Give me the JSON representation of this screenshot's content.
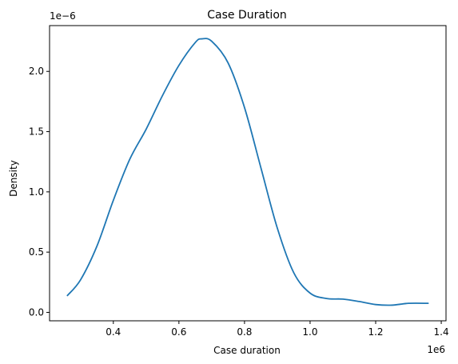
{
  "chart_data": {
    "type": "line",
    "title": "Case Duration",
    "xlabel": "Case duration",
    "ylabel": "Density",
    "x_offset_label": "1e6",
    "y_offset_label": "1e−6",
    "x_scale": 1000000,
    "y_scale": 1e-06,
    "xlim": [
      0.2055,
      1.4145
    ],
    "ylim": [
      -0.07,
      2.38
    ],
    "x_ticks": [
      {
        "value": 0.4,
        "label": "0.4"
      },
      {
        "value": 0.6,
        "label": "0.6"
      },
      {
        "value": 0.8,
        "label": "0.8"
      },
      {
        "value": 1.0,
        "label": "1.0"
      },
      {
        "value": 1.2,
        "label": "1.2"
      },
      {
        "value": 1.4,
        "label": "1.4"
      }
    ],
    "y_ticks": [
      {
        "value": 0.0,
        "label": "0.0"
      },
      {
        "value": 0.5,
        "label": "0.5"
      },
      {
        "value": 1.0,
        "label": "1.0"
      },
      {
        "value": 1.5,
        "label": "1.5"
      },
      {
        "value": 2.0,
        "label": "2.0"
      }
    ],
    "grid": false,
    "legend": "none",
    "series": [
      {
        "color": "#1f77b4",
        "points": [
          [
            0.26,
            0.14
          ],
          [
            0.3,
            0.27
          ],
          [
            0.35,
            0.55
          ],
          [
            0.4,
            0.93
          ],
          [
            0.45,
            1.27
          ],
          [
            0.5,
            1.52
          ],
          [
            0.55,
            1.8
          ],
          [
            0.6,
            2.05
          ],
          [
            0.65,
            2.24
          ],
          [
            0.67,
            2.27
          ],
          [
            0.7,
            2.25
          ],
          [
            0.75,
            2.07
          ],
          [
            0.8,
            1.7
          ],
          [
            0.85,
            1.2
          ],
          [
            0.9,
            0.7
          ],
          [
            0.95,
            0.33
          ],
          [
            1.0,
            0.16
          ],
          [
            1.05,
            0.115
          ],
          [
            1.1,
            0.11
          ],
          [
            1.15,
            0.09
          ],
          [
            1.2,
            0.065
          ],
          [
            1.25,
            0.06
          ],
          [
            1.3,
            0.075
          ],
          [
            1.36,
            0.075
          ]
        ]
      }
    ]
  }
}
